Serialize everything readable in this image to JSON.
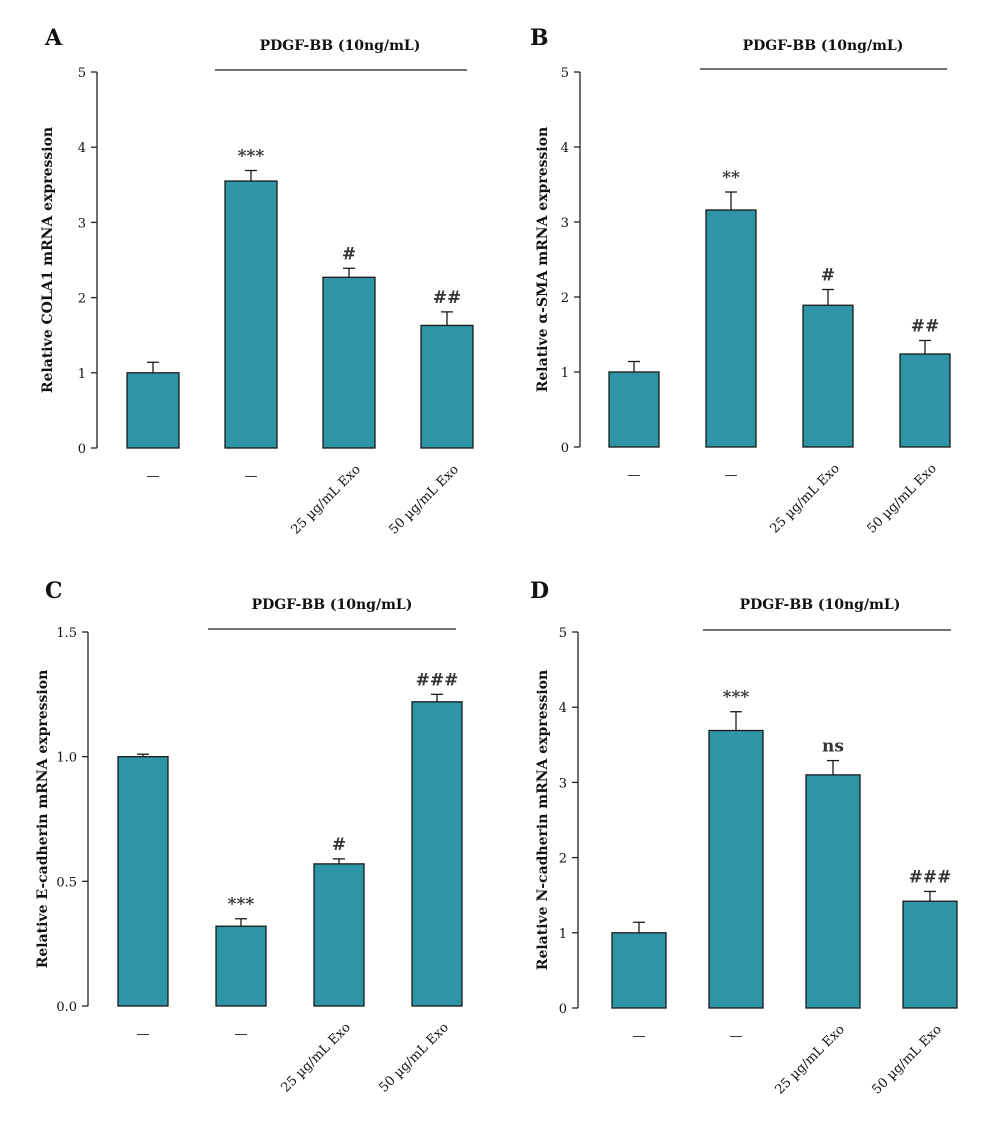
{
  "figure": {
    "bar_color": "#2e95a6"
  },
  "chart_data": [
    {
      "panel": "A",
      "type": "bar",
      "header": "PDGF-BB (10ng/mL)",
      "ylabel": "Relative COLA1 mRNA expression",
      "categories": [
        "—",
        "—",
        "25 µg/mL Exo",
        "50 µg/mL Exo"
      ],
      "values": [
        1.0,
        3.55,
        2.27,
        1.63
      ],
      "errors": [
        0.14,
        0.14,
        0.12,
        0.18
      ],
      "annotations": [
        "",
        "***",
        "#",
        "##"
      ],
      "ylim": [
        0,
        5
      ],
      "yticks": [
        0,
        1,
        2,
        3,
        4,
        5
      ],
      "ytick_labels": [
        "0",
        "1",
        "2",
        "3",
        "4",
        "5"
      ]
    },
    {
      "panel": "B",
      "type": "bar",
      "header": "PDGF-BB (10ng/mL)",
      "ylabel": "Relative α-SMA mRNA expression",
      "categories": [
        "—",
        "—",
        "25 µg/mL Exo",
        "50 µg/mL Exo"
      ],
      "values": [
        1.0,
        3.16,
        1.89,
        1.24
      ],
      "errors": [
        0.14,
        0.24,
        0.21,
        0.18
      ],
      "annotations": [
        "",
        "**",
        "#",
        "##"
      ],
      "ylim": [
        0,
        5
      ],
      "yticks": [
        0,
        1,
        2,
        3,
        4,
        5
      ],
      "ytick_labels": [
        "0",
        "1",
        "2",
        "3",
        "4",
        "5"
      ]
    },
    {
      "panel": "C",
      "type": "bar",
      "header": "PDGF-BB (10ng/mL)",
      "ylabel": "Relative E-cadherin mRNA expression",
      "categories": [
        "—",
        "—",
        "25 µg/mL Exo",
        "50 µg/mL Exo"
      ],
      "values": [
        1.0,
        0.32,
        0.57,
        1.22
      ],
      "errors": [
        0.01,
        0.03,
        0.02,
        0.03
      ],
      "annotations": [
        "",
        "***",
        "#",
        "###"
      ],
      "ylim": [
        0,
        1.5
      ],
      "yticks": [
        0,
        0.5,
        1.0,
        1.5
      ],
      "ytick_labels": [
        "0.0",
        "0.5",
        "1.0",
        "1.5"
      ]
    },
    {
      "panel": "D",
      "type": "bar",
      "header": "PDGF-BB (10ng/mL)",
      "ylabel": "Relative N-cadherin mRNA expression",
      "categories": [
        "—",
        "—",
        "25 µg/mL Exo",
        "50 µg/mL Exo"
      ],
      "values": [
        1.0,
        3.69,
        3.1,
        1.42
      ],
      "errors": [
        0.14,
        0.25,
        0.19,
        0.13
      ],
      "annotations": [
        "",
        "***",
        "ns",
        "###"
      ],
      "ylim": [
        0,
        5
      ],
      "yticks": [
        0,
        1,
        2,
        3,
        4,
        5
      ],
      "ytick_labels": [
        "0",
        "1",
        "2",
        "3",
        "4",
        "5"
      ]
    }
  ]
}
